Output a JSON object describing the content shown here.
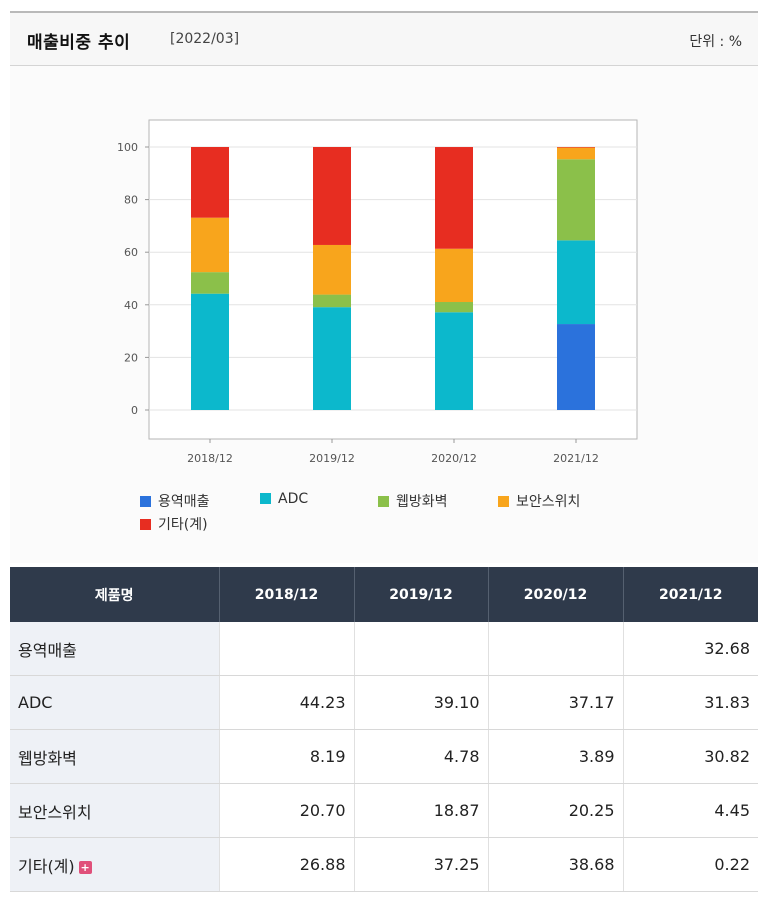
{
  "header": {
    "title": "매출비중 추이",
    "period": "[2022/03]",
    "unit": "단위 : %"
  },
  "colors": {
    "series": [
      "#2b72dc",
      "#0cb8cc",
      "#8bc04a",
      "#f8a51c",
      "#e72d21"
    ]
  },
  "chart_data": {
    "type": "bar",
    "stacked": true,
    "categories": [
      "2018/12",
      "2019/12",
      "2020/12",
      "2021/12"
    ],
    "series": [
      {
        "name": "용역매출",
        "values": [
          0,
          0,
          0,
          32.68
        ]
      },
      {
        "name": "ADC",
        "values": [
          44.23,
          39.1,
          37.17,
          31.83
        ]
      },
      {
        "name": "웹방화벽",
        "values": [
          8.19,
          4.78,
          3.89,
          30.82
        ]
      },
      {
        "name": "보안스위치",
        "values": [
          20.7,
          18.87,
          20.25,
          4.45
        ]
      },
      {
        "name": "기타(계)",
        "values": [
          26.88,
          37.25,
          38.68,
          0.22
        ]
      }
    ],
    "ylim": [
      0,
      100
    ],
    "yticks": [
      "0",
      "20",
      "40",
      "60",
      "80",
      "100"
    ],
    "grid": true,
    "legend": "bottom"
  },
  "table": {
    "header": [
      "제품명",
      "2018/12",
      "2019/12",
      "2020/12",
      "2021/12"
    ],
    "rows": [
      {
        "name": "용역매출",
        "values": [
          "",
          "",
          "",
          "32.68"
        ]
      },
      {
        "name": "ADC",
        "values": [
          "44.23",
          "39.10",
          "37.17",
          "31.83"
        ]
      },
      {
        "name": "웹방화벽",
        "values": [
          "8.19",
          "4.78",
          "3.89",
          "30.82"
        ]
      },
      {
        "name": "보안스위치",
        "values": [
          "20.70",
          "18.87",
          "20.25",
          "4.45"
        ]
      },
      {
        "name": "기타(계)",
        "values": [
          "26.88",
          "37.25",
          "38.68",
          "0.22"
        ]
      }
    ]
  }
}
